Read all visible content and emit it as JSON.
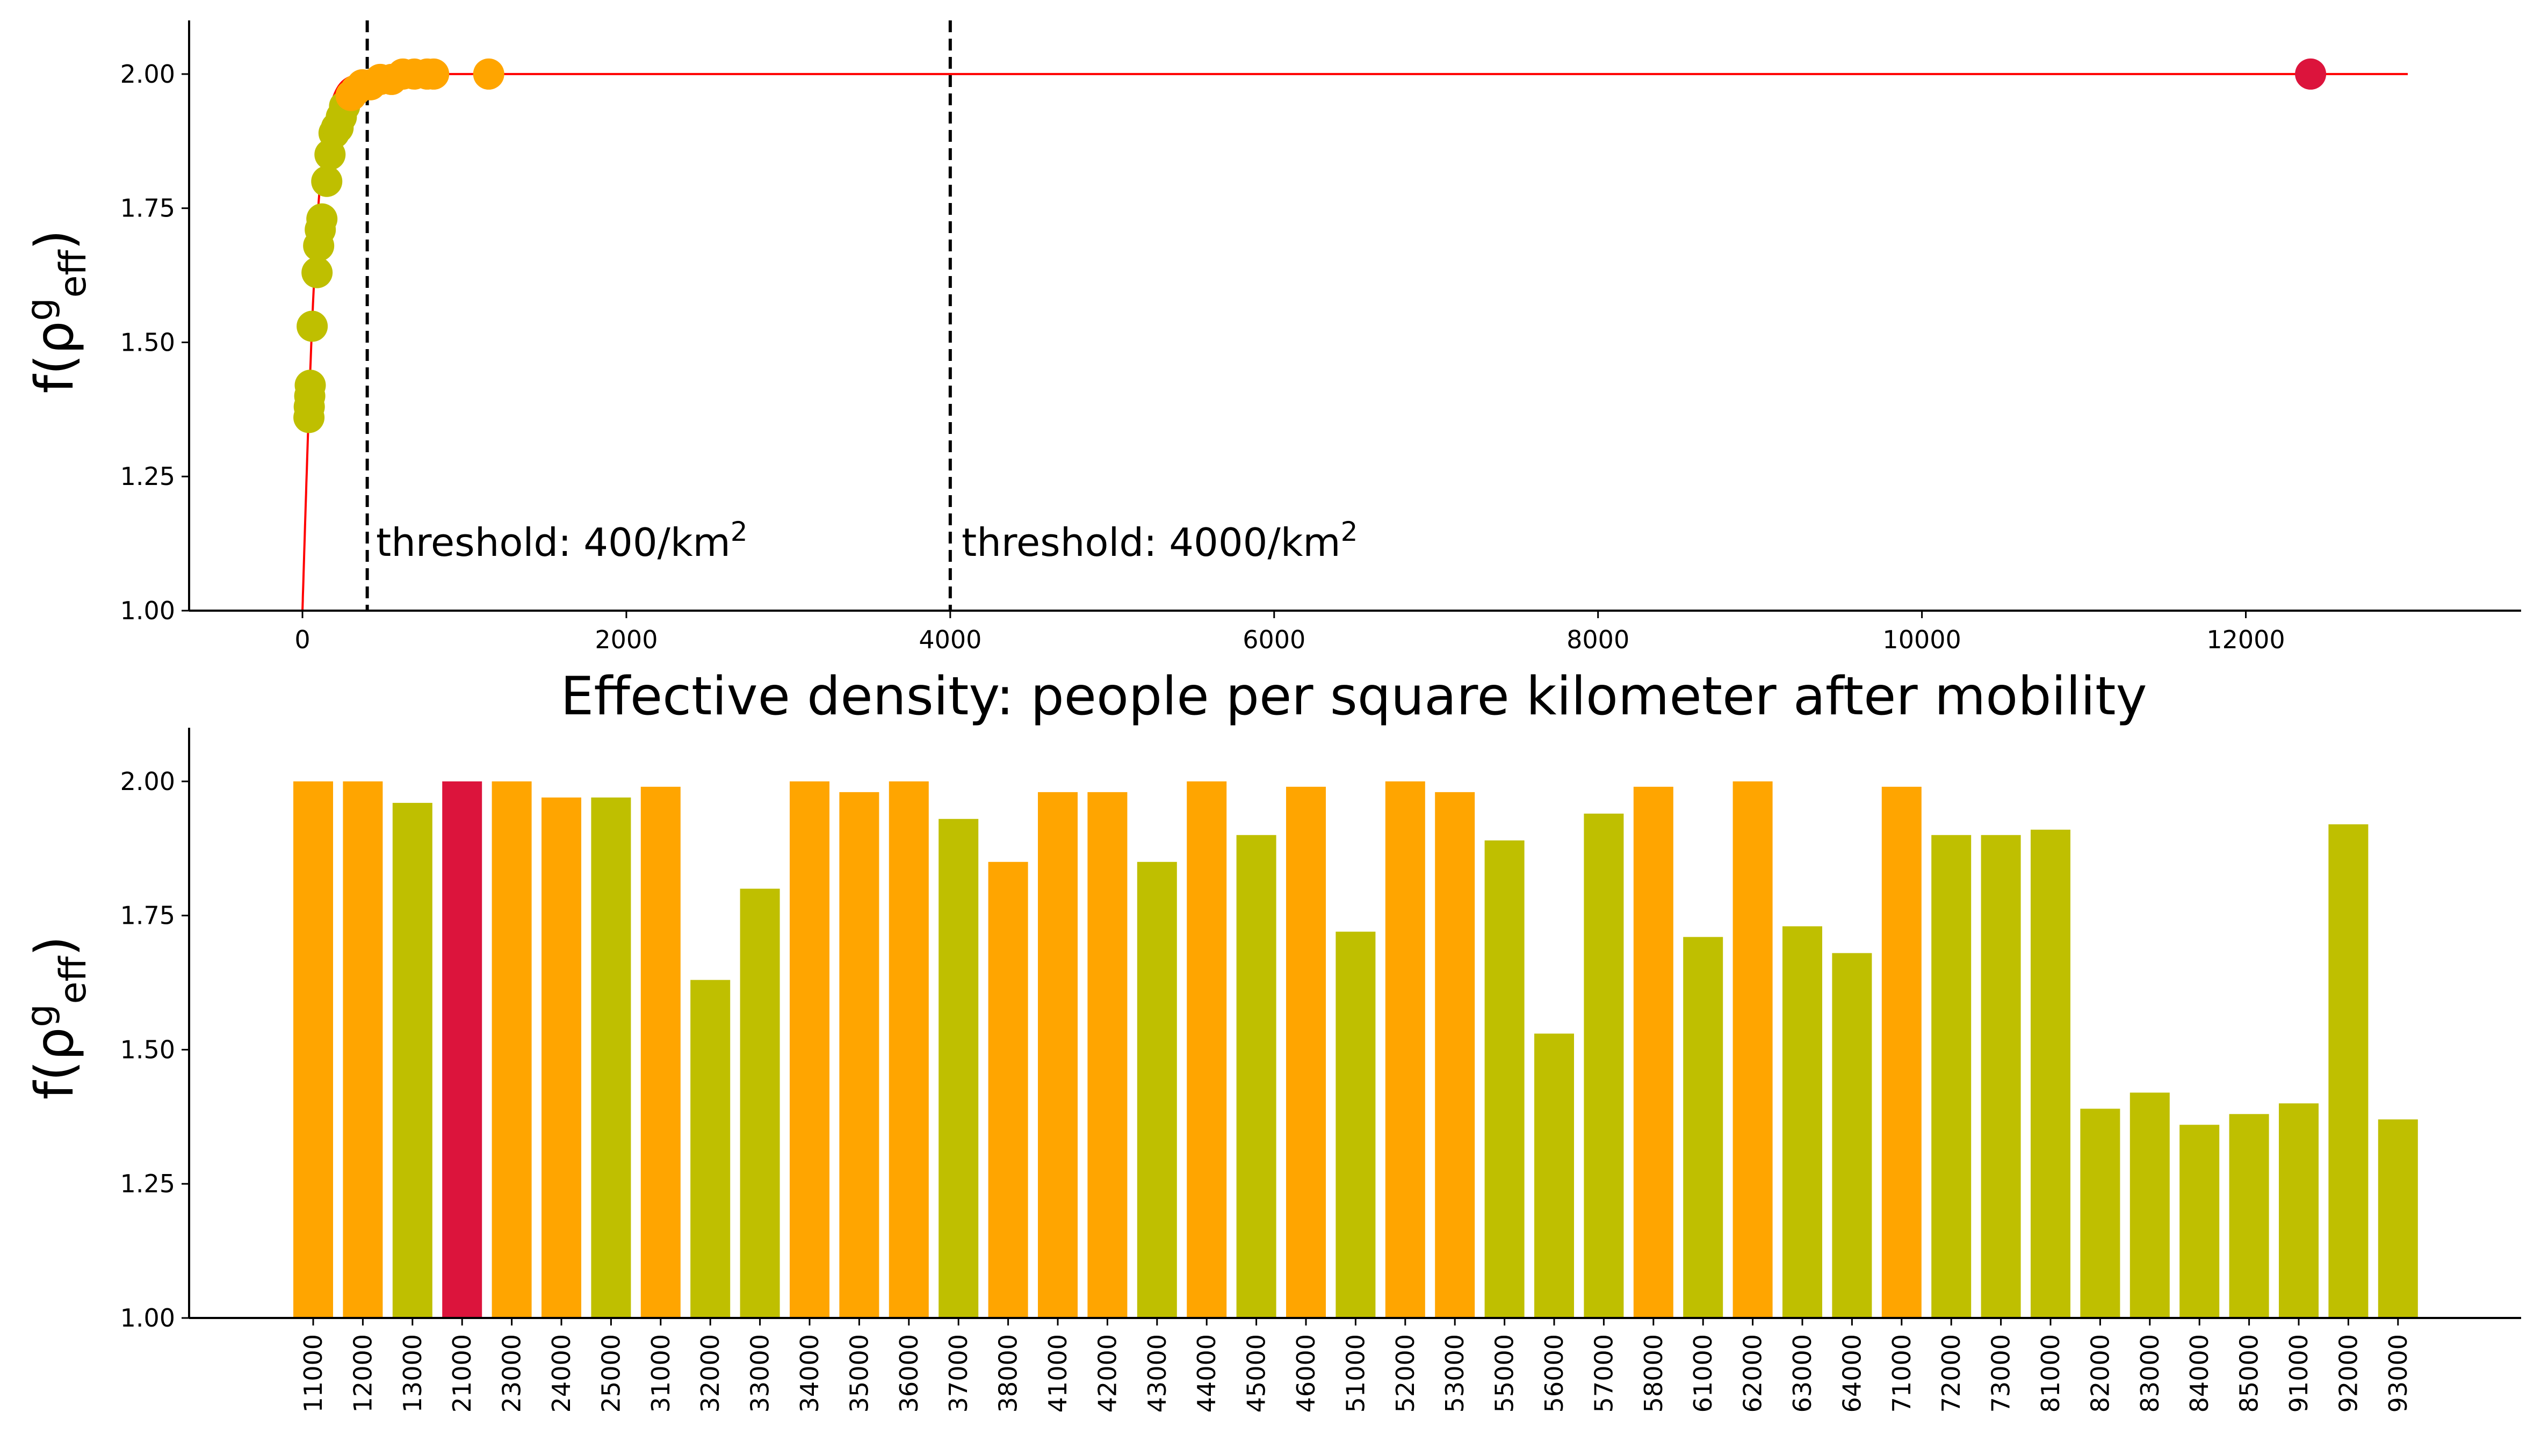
{
  "colors": {
    "low": "#bfbf00",
    "mid": "#ffa500",
    "high": "#dc143c",
    "curve": "#ff0000",
    "threshold_line": "#000000"
  },
  "chart_data": [
    {
      "type": "scatter",
      "ylabel_base": "f(ρ",
      "ylabel_sup": "g",
      "ylabel_sub": "eff",
      "ylabel_close": ")",
      "xlabel": "Effective density: people per square kilometer after mobility",
      "xlim": [
        -700,
        13700
      ],
      "ylim": [
        1.0,
        2.1
      ],
      "xticks": [
        0,
        2000,
        4000,
        6000,
        8000,
        10000,
        12000
      ],
      "yticks": [
        1.0,
        1.25,
        1.5,
        1.75,
        2.0
      ],
      "ytick_labels": [
        "1.00",
        "1.25",
        "1.50",
        "1.75",
        "2.00"
      ],
      "curve": {
        "description_free": true,
        "x_end": 13000
      },
      "thresholds": [
        {
          "x": 400,
          "label": "threshold: 400/km",
          "sup": "2"
        },
        {
          "x": 4000,
          "label": "threshold: 4000/km",
          "sup": "2"
        }
      ],
      "points": [
        {
          "x": 40,
          "y": 1.36,
          "c": "low"
        },
        {
          "x": 42,
          "y": 1.38,
          "c": "low"
        },
        {
          "x": 45,
          "y": 1.4,
          "c": "low"
        },
        {
          "x": 48,
          "y": 1.42,
          "c": "low"
        },
        {
          "x": 60,
          "y": 1.53,
          "c": "low"
        },
        {
          "x": 90,
          "y": 1.63,
          "c": "low"
        },
        {
          "x": 100,
          "y": 1.68,
          "c": "low"
        },
        {
          "x": 110,
          "y": 1.71,
          "c": "low"
        },
        {
          "x": 120,
          "y": 1.73,
          "c": "low"
        },
        {
          "x": 150,
          "y": 1.8,
          "c": "low"
        },
        {
          "x": 170,
          "y": 1.85,
          "c": "low"
        },
        {
          "x": 195,
          "y": 1.89,
          "c": "low"
        },
        {
          "x": 210,
          "y": 1.9,
          "c": "low"
        },
        {
          "x": 220,
          "y": 1.9,
          "c": "low"
        },
        {
          "x": 240,
          "y": 1.92,
          "c": "low"
        },
        {
          "x": 260,
          "y": 1.94,
          "c": "low"
        },
        {
          "x": 300,
          "y": 1.96,
          "c": "mid"
        },
        {
          "x": 330,
          "y": 1.97,
          "c": "mid"
        },
        {
          "x": 370,
          "y": 1.98,
          "c": "mid"
        },
        {
          "x": 420,
          "y": 1.98,
          "c": "mid"
        },
        {
          "x": 480,
          "y": 1.99,
          "c": "mid"
        },
        {
          "x": 550,
          "y": 1.99,
          "c": "mid"
        },
        {
          "x": 620,
          "y": 2.0,
          "c": "mid"
        },
        {
          "x": 690,
          "y": 2.0,
          "c": "mid"
        },
        {
          "x": 770,
          "y": 2.0,
          "c": "mid"
        },
        {
          "x": 810,
          "y": 2.0,
          "c": "mid"
        },
        {
          "x": 1150,
          "y": 2.0,
          "c": "mid"
        },
        {
          "x": 12400,
          "y": 2.0,
          "c": "high"
        }
      ]
    },
    {
      "type": "bar",
      "ylabel_base": "f(ρ",
      "ylabel_sup": "g",
      "ylabel_sub": "eff",
      "ylabel_close": ")",
      "ylim": [
        1.0,
        2.1
      ],
      "yticks": [
        1.0,
        1.25,
        1.5,
        1.75,
        2.0
      ],
      "ytick_labels": [
        "1.00",
        "1.25",
        "1.50",
        "1.75",
        "2.00"
      ],
      "categories": [
        "11000",
        "12000",
        "13000",
        "21000",
        "23000",
        "24000",
        "25000",
        "31000",
        "32000",
        "33000",
        "34000",
        "35000",
        "36000",
        "37000",
        "38000",
        "41000",
        "42000",
        "43000",
        "44000",
        "45000",
        "46000",
        "51000",
        "52000",
        "53000",
        "55000",
        "56000",
        "57000",
        "58000",
        "61000",
        "62000",
        "63000",
        "64000",
        "71000",
        "72000",
        "73000",
        "81000",
        "82000",
        "83000",
        "84000",
        "85000",
        "91000",
        "92000",
        "93000"
      ],
      "values": [
        2.0,
        2.0,
        1.96,
        2.0,
        2.0,
        1.97,
        1.97,
        1.99,
        1.63,
        1.8,
        2.0,
        1.98,
        2.0,
        1.93,
        1.85,
        1.98,
        1.98,
        1.85,
        2.0,
        1.9,
        1.99,
        1.72,
        2.0,
        1.98,
        1.89,
        1.53,
        1.94,
        1.99,
        1.71,
        2.0,
        1.73,
        1.68,
        1.99,
        1.9,
        1.9,
        1.91,
        1.39,
        1.42,
        1.36,
        1.38,
        1.4,
        1.92,
        1.37
      ],
      "color_keys": [
        "mid",
        "mid",
        "low",
        "high",
        "mid",
        "mid",
        "low",
        "mid",
        "low",
        "low",
        "mid",
        "mid",
        "mid",
        "low",
        "mid",
        "mid",
        "mid",
        "low",
        "mid",
        "low",
        "mid",
        "low",
        "mid",
        "mid",
        "low",
        "low",
        "low",
        "mid",
        "low",
        "mid",
        "low",
        "low",
        "mid",
        "low",
        "low",
        "low",
        "low",
        "low",
        "low",
        "low",
        "low",
        "low",
        "low"
      ]
    }
  ]
}
